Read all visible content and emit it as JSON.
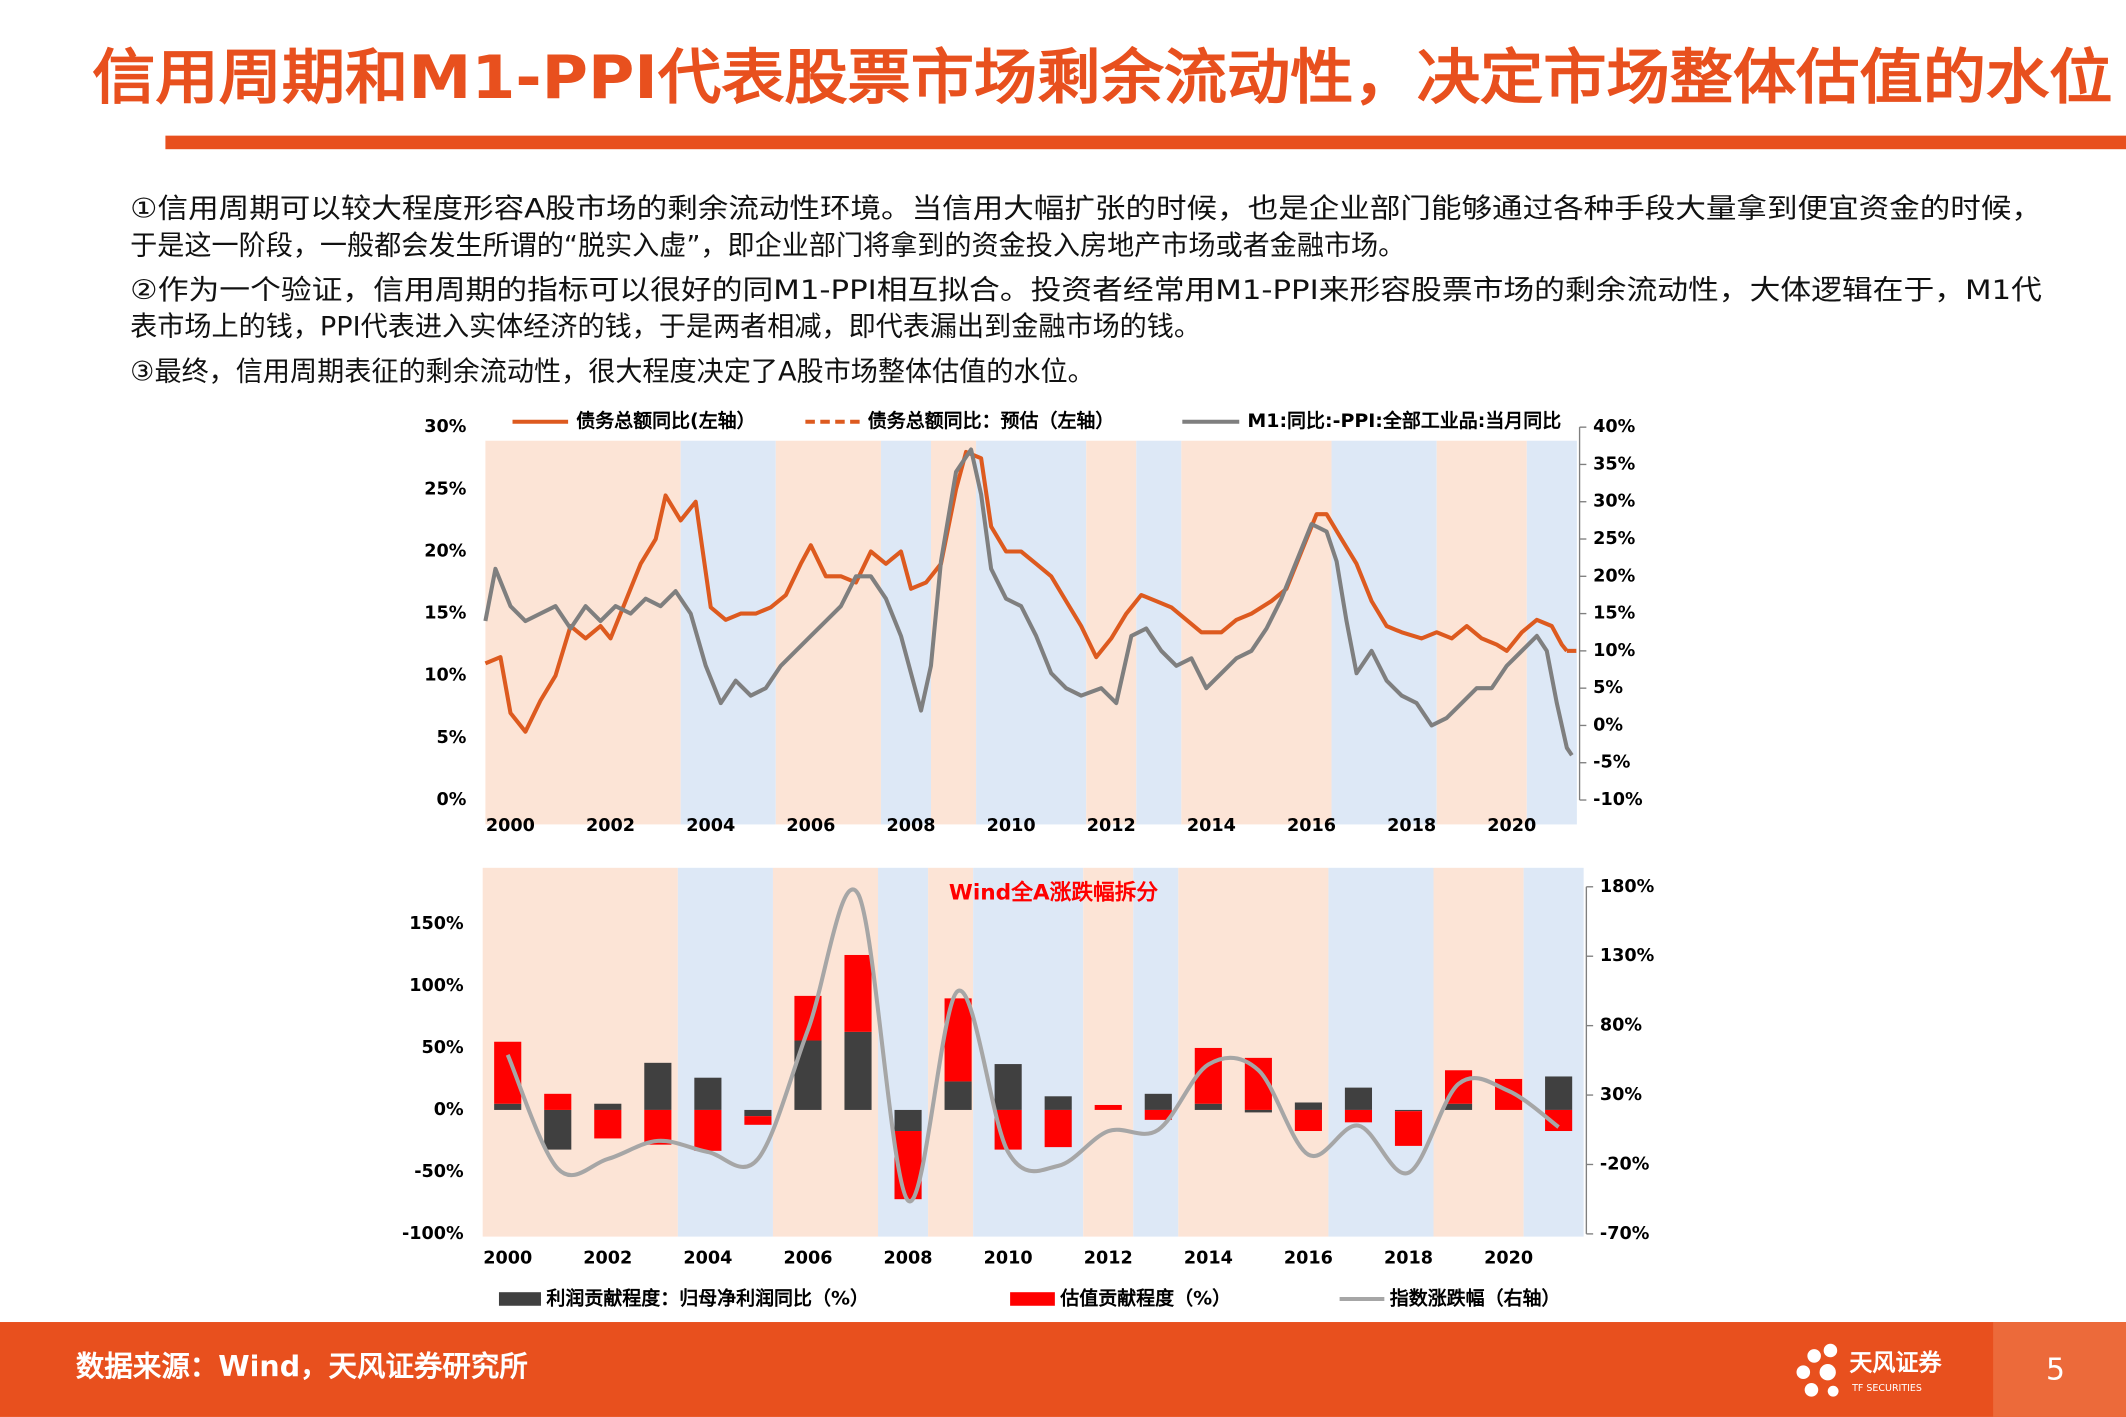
{
  "header": {
    "title": "信用周期和M1-PPI代表股票市场剩余流动性，决定市场整体估值的水位"
  },
  "paragraphs": [
    [
      "①信用周期可以较大程度形容A股市场的剩余流动性环境。当信用大幅扩张的时候，也是企业部门能够通过各种手段大量拿到便宜资金的时候，",
      "于是这一阶段，一般都会发生所谓的“脱实入虚”，即企业部门将拿到的资金投入房地产市场或者金融市场。"
    ],
    [
      "②作为一个验证，信用周期的指标可以很好的同M1-PPI相互拟合。投资者经常用M1-PPI来形容股票市场的剩余流动性，大体逻辑在于，M1代",
      "表市场上的钱，PPI代表进入实体经济的钱，于是两者相减，即代表漏出到金融市场的钱。"
    ],
    [
      "③最终，信用周期表征的剩余流动性，很大程度决定了A股市场整体估值的水位。"
    ]
  ],
  "chart_data": [
    {
      "type": "line",
      "xlim": [
        1999.5,
        2021.3
      ],
      "xticks": [
        2000,
        2002,
        2004,
        2006,
        2008,
        2010,
        2012,
        2014,
        2016,
        2018,
        2020
      ],
      "ylim": [
        0,
        30
      ],
      "yticks": [
        {
          "value": 0,
          "label": "0%"
        },
        {
          "value": 5,
          "label": "5%"
        },
        {
          "value": 10,
          "label": "10%"
        },
        {
          "value": 15,
          "label": "15%"
        },
        {
          "value": 20,
          "label": "20%"
        },
        {
          "value": 25,
          "label": "25%"
        },
        {
          "value": 30,
          "label": "30%"
        }
      ],
      "y2lim": [
        -10,
        40
      ],
      "y2ticks": [
        {
          "value": -10,
          "label": "-10%"
        },
        {
          "value": -5,
          "label": "-5%"
        },
        {
          "value": 0,
          "label": "0%"
        },
        {
          "value": 5,
          "label": "5%"
        },
        {
          "value": 10,
          "label": "10%"
        },
        {
          "value": 15,
          "label": "15%"
        },
        {
          "value": 20,
          "label": "20%"
        },
        {
          "value": 25,
          "label": "25%"
        },
        {
          "value": 30,
          "label": "30%"
        },
        {
          "value": 35,
          "label": "35%"
        },
        {
          "value": 40,
          "label": "40%"
        }
      ],
      "shaded_periods": [
        {
          "start": 1999.5,
          "end": 2003.4,
          "color": "#fce4d6"
        },
        {
          "start": 2003.4,
          "end": 2005.3,
          "color": "#dde8f6"
        },
        {
          "start": 2005.3,
          "end": 2007.4,
          "color": "#fce4d6"
        },
        {
          "start": 2007.4,
          "end": 2008.4,
          "color": "#dde8f6"
        },
        {
          "start": 2008.4,
          "end": 2009.3,
          "color": "#fce4d6"
        },
        {
          "start": 2009.3,
          "end": 2011.5,
          "color": "#dde8f6"
        },
        {
          "start": 2011.5,
          "end": 2012.5,
          "color": "#fce4d6"
        },
        {
          "start": 2012.5,
          "end": 2013.4,
          "color": "#dde8f6"
        },
        {
          "start": 2013.4,
          "end": 2016.4,
          "color": "#fce4d6"
        },
        {
          "start": 2016.4,
          "end": 2018.5,
          "color": "#dde8f6"
        },
        {
          "start": 2018.5,
          "end": 2020.3,
          "color": "#fce4d6"
        },
        {
          "start": 2020.3,
          "end": 2021.3,
          "color": "#dde8f6"
        }
      ],
      "series": [
        {
          "name": "债务总额同比(左轴）",
          "color": "#dd5a1f",
          "line_style": "solid",
          "x": [
            1999.5,
            1999.8,
            2000.0,
            2000.3,
            2000.6,
            2000.9,
            2001.2,
            2001.5,
            2001.8,
            2002.0,
            2002.3,
            2002.6,
            2002.9,
            2003.1,
            2003.4,
            2003.7,
            2004.0,
            2004.3,
            2004.6,
            2004.9,
            2005.2,
            2005.5,
            2005.8,
            2006.0,
            2006.3,
            2006.6,
            2006.9,
            2007.2,
            2007.5,
            2007.8,
            2008.0,
            2008.3,
            2008.6,
            2008.9,
            2009.1,
            2009.4,
            2009.6,
            2009.9,
            2010.2,
            2010.5,
            2010.8,
            2011.1,
            2011.4,
            2011.7,
            2012.0,
            2012.3,
            2012.6,
            2012.9,
            2013.2,
            2013.5,
            2013.8,
            2014.2,
            2014.5,
            2014.8,
            2015.2,
            2015.5,
            2015.8,
            2016.1,
            2016.3,
            2016.6,
            2016.9,
            2017.2,
            2017.5,
            2017.8,
            2018.2,
            2018.5,
            2018.8,
            2019.1,
            2019.4,
            2019.7,
            2019.9,
            2020.2,
            2020.5,
            2020.8,
            2021.0,
            2021.1
          ],
          "values": [
            11,
            11.5,
            7,
            5.5,
            8,
            10,
            14,
            13,
            14,
            13,
            16,
            19,
            21,
            24.5,
            22.5,
            24,
            15.5,
            14.5,
            15,
            15,
            15.5,
            16.5,
            19,
            20.5,
            18,
            18,
            17.5,
            20,
            19,
            20,
            17,
            17.5,
            19,
            25,
            28,
            27.5,
            22,
            20,
            20,
            19,
            18,
            16,
            14,
            11.5,
            13,
            15,
            16.5,
            16,
            15.5,
            14.5,
            13.5,
            13.5,
            14.5,
            15,
            16,
            17,
            20,
            23,
            23,
            21,
            19,
            16,
            14,
            13.5,
            13,
            13.5,
            13,
            14,
            13,
            12.5,
            12,
            13.5,
            14.5,
            14,
            12.5,
            12
          ]
        },
        {
          "name": "债务总额同比：预估（左轴）",
          "color": "#dd5a1f",
          "line_style": "dashed",
          "x": [
            2021.1,
            2021.3
          ],
          "values": [
            12,
            12
          ]
        },
        {
          "name": "M1:同比:-PPI:全部工业品:当月同比",
          "color": "#7f7f7f",
          "line_style": "solid",
          "axis": "y2",
          "x": [
            1999.5,
            1999.7,
            2000.0,
            2000.3,
            2000.6,
            2000.9,
            2001.2,
            2001.5,
            2001.8,
            2002.1,
            2002.4,
            2002.7,
            2003.0,
            2003.3,
            2003.6,
            2003.9,
            2004.2,
            2004.5,
            2004.8,
            2005.1,
            2005.4,
            2005.7,
            2006.0,
            2006.3,
            2006.6,
            2006.9,
            2007.2,
            2007.5,
            2007.8,
            2008.0,
            2008.2,
            2008.4,
            2008.6,
            2008.9,
            2009.2,
            2009.4,
            2009.6,
            2009.9,
            2010.2,
            2010.5,
            2010.8,
            2011.1,
            2011.4,
            2011.8,
            2012.1,
            2012.4,
            2012.7,
            2013.0,
            2013.3,
            2013.6,
            2013.9,
            2014.2,
            2014.5,
            2014.8,
            2015.1,
            2015.4,
            2015.7,
            2016.0,
            2016.3,
            2016.5,
            2016.7,
            2016.9,
            2017.2,
            2017.5,
            2017.8,
            2018.1,
            2018.4,
            2018.7,
            2019.0,
            2019.3,
            2019.6,
            2019.9,
            2020.2,
            2020.5,
            2020.7,
            2020.9,
            2021.1,
            2021.2
          ],
          "values": [
            14,
            21,
            16,
            14,
            15,
            16,
            13,
            16,
            14,
            16,
            15,
            17,
            16,
            18,
            15,
            8,
            3,
            6,
            4,
            5,
            8,
            10,
            12,
            14,
            16,
            20,
            20,
            17,
            12,
            7,
            2,
            8,
            22,
            34,
            37,
            31,
            21,
            17,
            16,
            12,
            7,
            5,
            4,
            5,
            3,
            12,
            13,
            10,
            8,
            9,
            5,
            7,
            9,
            10,
            13,
            17,
            22,
            27,
            26,
            22,
            14,
            7,
            10,
            6,
            4,
            3,
            0,
            1,
            3,
            5,
            5,
            8,
            10,
            12,
            10,
            3,
            -3,
            -4
          ]
        }
      ]
    },
    {
      "type": "bar",
      "stacked": true,
      "title": "Wind全A涨跌幅拆分",
      "categories": [
        "2000",
        null,
        "2002",
        null,
        "2004",
        null,
        "2006",
        null,
        "2008",
        null,
        "2010",
        null,
        "2012",
        null,
        "2014",
        null,
        "2016",
        null,
        "2018",
        null,
        "2020",
        null
      ],
      "ylim": [
        -100,
        180
      ],
      "yticks": [
        {
          "value": -100,
          "label": "-100%"
        },
        {
          "value": -50,
          "label": "-50%"
        },
        {
          "value": 0,
          "label": "0%"
        },
        {
          "value": 50,
          "label": "50%"
        },
        {
          "value": 100,
          "label": "100%"
        },
        {
          "value": 150,
          "label": "150%"
        }
      ],
      "y2lim": [
        -70,
        180
      ],
      "y2ticks": [
        {
          "value": -70,
          "label": "-70%"
        },
        {
          "value": -20,
          "label": "-20%"
        },
        {
          "value": 30,
          "label": "30%"
        },
        {
          "value": 80,
          "label": "80%"
        },
        {
          "value": 130,
          "label": "130%"
        },
        {
          "value": 180,
          "label": "180%"
        }
      ],
      "shaded_periods": [
        {
          "start": 1999.5,
          "end": 2003.4,
          "color": "#fce4d6"
        },
        {
          "start": 2003.4,
          "end": 2005.3,
          "color": "#dde8f6"
        },
        {
          "start": 2005.3,
          "end": 2007.4,
          "color": "#fce4d6"
        },
        {
          "start": 2007.4,
          "end": 2008.4,
          "color": "#dde8f6"
        },
        {
          "start": 2008.4,
          "end": 2009.3,
          "color": "#fce4d6"
        },
        {
          "start": 2009.3,
          "end": 2011.5,
          "color": "#dde8f6"
        },
        {
          "start": 2011.5,
          "end": 2012.5,
          "color": "#fce4d6"
        },
        {
          "start": 2012.5,
          "end": 2013.4,
          "color": "#dde8f6"
        },
        {
          "start": 2013.4,
          "end": 2016.4,
          "color": "#fce4d6"
        },
        {
          "start": 2016.4,
          "end": 2018.5,
          "color": "#dde8f6"
        },
        {
          "start": 2018.5,
          "end": 2020.3,
          "color": "#fce4d6"
        },
        {
          "start": 2020.3,
          "end": 2021.5,
          "color": "#dde8f6"
        }
      ],
      "series": [
        {
          "name": "利润贡献程度：归母净利润同比（%）",
          "color": "#404040",
          "values": [
            5,
            -32,
            5,
            38,
            26,
            -5,
            56,
            63,
            -17,
            23,
            37,
            11,
            0,
            13,
            5,
            -2,
            6,
            18,
            -1,
            5,
            0,
            27
          ]
        },
        {
          "name": "估值贡献程度（%）",
          "color": "#ff0000",
          "values": [
            50,
            13,
            -23,
            -28,
            -33,
            -7,
            36,
            62,
            -55,
            67,
            -32,
            -30,
            4,
            -8,
            45,
            42,
            -17,
            -10,
            -28,
            27,
            25,
            -17
          ]
        },
        {
          "name": "指数涨跌幅（右轴）",
          "color": "#a6a6a6",
          "type": "line",
          "axis": "y2",
          "values": [
            59,
            -23,
            -16,
            -3,
            -11,
            -16,
            77,
            175,
            -46,
            105,
            -11,
            -21,
            4,
            5,
            52,
            48,
            -13,
            8,
            -26,
            38,
            33,
            7
          ]
        }
      ]
    }
  ],
  "footer": {
    "source": "数据来源：Wind，天风证券研究所",
    "logo": "天风证券",
    "logo_sub": "TF SECURITIES",
    "page": 5
  }
}
